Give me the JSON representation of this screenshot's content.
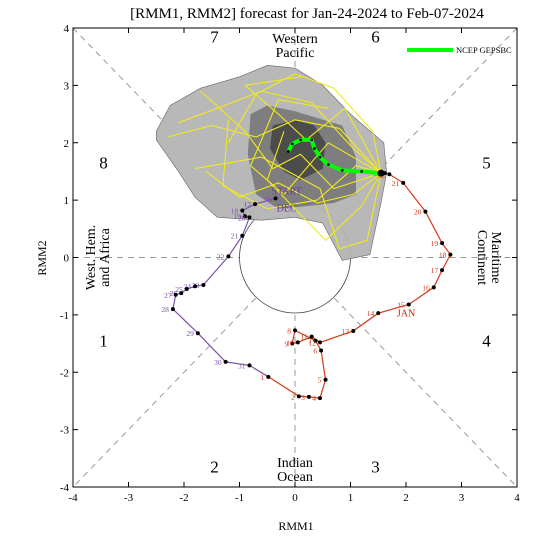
{
  "chart_data": {
    "type": "scatter",
    "title": "[RMM1, RMM2] forecast for Jan-24-2024 to Feb-07-2024",
    "xlabel": "RMM1",
    "ylabel": "RMM2",
    "xlim": [
      -4,
      4
    ],
    "ylim": [
      -4,
      4
    ],
    "xticks": [
      "-4",
      "-3",
      "-2",
      "-1",
      "0",
      "1",
      "2",
      "3",
      "4"
    ],
    "yticks": [
      "-4",
      "-3",
      "-2",
      "-1",
      "0",
      "1",
      "2",
      "3",
      "4"
    ],
    "phases": [
      {
        "label": "1",
        "x": -3.45,
        "y": -1.55
      },
      {
        "label": "2",
        "x": -1.45,
        "y": -3.75
      },
      {
        "label": "3",
        "x": 1.45,
        "y": -3.75
      },
      {
        "label": "4",
        "x": 3.45,
        "y": -1.55
      },
      {
        "label": "5",
        "x": 3.45,
        "y": 1.55
      },
      {
        "label": "6",
        "x": 1.45,
        "y": 3.75
      },
      {
        "label": "7",
        "x": -1.45,
        "y": 3.75
      },
      {
        "label": "8",
        "x": -3.45,
        "y": 1.55
      }
    ],
    "regions": {
      "top": [
        "Western",
        "Pacific"
      ],
      "bottom": [
        "Indian",
        "Ocean"
      ],
      "left": [
        "West. Hem.",
        "and Africa"
      ],
      "right": [
        "Maritime",
        "Continent"
      ]
    },
    "legend": {
      "label": "NCEP GEPSBC",
      "position": "top-right",
      "color": "#00ff00"
    },
    "month_labels": [
      {
        "text": "DEC",
        "x": -0.15,
        "y": 0.8,
        "color": "#6a3d9a"
      },
      {
        "text": "START",
        "x": -0.15,
        "y": 1.1,
        "color": "#6a3d9a"
      },
      {
        "text": "JAN",
        "x": 2.0,
        "y": -1.03,
        "color": "#cc2200"
      }
    ],
    "colors": {
      "dec": "#7b52a8",
      "jan": "#d43a1a",
      "ensemble": "#f0ea1e",
      "ensemble_mean": "#00ff00",
      "plume_outer": "#b4b4b4",
      "plume_inner": "#7a7a7a",
      "plume_core": "#4a4a4a"
    },
    "series": [
      {
        "name": "DEC",
        "points": [
          {
            "day": "22",
            "x": -1.2,
            "y": 0.02
          },
          {
            "day": "23",
            "x": -1.65,
            "y": -0.48
          },
          {
            "day": "24",
            "x": -1.8,
            "y": -0.5
          },
          {
            "day": "25",
            "x": -1.95,
            "y": -0.55
          },
          {
            "day": "26",
            "x": -2.05,
            "y": -0.62
          },
          {
            "day": "27",
            "x": -2.15,
            "y": -0.65
          },
          {
            "day": "28",
            "x": -2.2,
            "y": -0.9
          },
          {
            "day": "29",
            "x": -1.75,
            "y": -1.32
          },
          {
            "day": "30",
            "x": -1.25,
            "y": -1.82
          },
          {
            "day": "31",
            "x": -0.82,
            "y": -1.88
          }
        ]
      },
      {
        "name": "JAN",
        "points": [
          {
            "day": "1",
            "x": -0.48,
            "y": -2.08
          },
          {
            "day": "2",
            "x": 0.07,
            "y": -2.42
          },
          {
            "day": "3",
            "x": 0.25,
            "y": -2.43
          },
          {
            "day": "4",
            "x": 0.45,
            "y": -2.45
          },
          {
            "day": "5",
            "x": 0.55,
            "y": -2.13
          },
          {
            "day": "6",
            "x": 0.47,
            "y": -1.62
          },
          {
            "day": "7",
            "x": 0.37,
            "y": -1.45
          },
          {
            "day": "8",
            "x": 0.0,
            "y": -1.27
          },
          {
            "day": "9",
            "x": -0.05,
            "y": -1.5
          },
          {
            "day": "10",
            "x": 0.05,
            "y": -1.48
          },
          {
            "day": "11",
            "x": 0.3,
            "y": -1.38
          },
          {
            "day": "12",
            "x": 0.45,
            "y": -1.48
          },
          {
            "day": "13",
            "x": 1.05,
            "y": -1.28
          },
          {
            "day": "14",
            "x": 1.5,
            "y": -0.97
          },
          {
            "day": "15",
            "x": 2.05,
            "y": -0.82
          },
          {
            "day": "16",
            "x": 2.5,
            "y": -0.52
          },
          {
            "day": "17",
            "x": 2.65,
            "y": -0.22
          },
          {
            "day": "18",
            "x": 2.8,
            "y": 0.05
          },
          {
            "day": "19",
            "x": 2.65,
            "y": 0.25
          },
          {
            "day": "20",
            "x": 2.35,
            "y": 0.8
          },
          {
            "day": "21",
            "x": 1.95,
            "y": 1.3
          },
          {
            "day": "22",
            "x": 1.7,
            "y": 1.45
          },
          {
            "day": "23",
            "x": 1.62,
            "y": 1.47
          }
        ]
      },
      {
        "name": "DEC_START",
        "points": [
          {
            "day": "16",
            "x": -0.35,
            "y": 1.03
          },
          {
            "day": "17",
            "x": -0.72,
            "y": 0.93
          },
          {
            "day": "18",
            "x": -0.95,
            "y": 0.82
          },
          {
            "day": "19",
            "x": -0.9,
            "y": 0.72
          },
          {
            "day": "20",
            "x": -0.82,
            "y": 0.7
          },
          {
            "day": "21",
            "x": -0.95,
            "y": 0.38
          }
        ]
      },
      {
        "name": "NCEP GEPSBC",
        "points": [
          {
            "x": 1.55,
            "y": 1.47
          },
          {
            "x": 1.2,
            "y": 1.5
          },
          {
            "x": 0.85,
            "y": 1.52
          },
          {
            "x": 0.6,
            "y": 1.62
          },
          {
            "x": 0.45,
            "y": 1.75
          },
          {
            "x": 0.35,
            "y": 1.9
          },
          {
            "x": 0.3,
            "y": 2.05
          },
          {
            "x": 0.1,
            "y": 2.05
          },
          {
            "x": -0.05,
            "y": 1.98
          },
          {
            "x": -0.12,
            "y": 1.85
          }
        ]
      }
    ],
    "plume": {
      "outer": [
        [
          -2.5,
          2.2
        ],
        [
          -2.25,
          2.65
        ],
        [
          -1.7,
          2.95
        ],
        [
          -1.0,
          3.15
        ],
        [
          -0.5,
          3.35
        ],
        [
          0.0,
          3.3
        ],
        [
          0.5,
          3.0
        ],
        [
          1.0,
          2.5
        ],
        [
          1.6,
          2.0
        ],
        [
          1.65,
          1.47
        ],
        [
          1.55,
          0.95
        ],
        [
          1.35,
          0.05
        ],
        [
          0.85,
          -0.05
        ],
        [
          0.5,
          0.6
        ],
        [
          0.0,
          0.7
        ],
        [
          -0.6,
          0.65
        ],
        [
          -1.4,
          0.7
        ],
        [
          -1.8,
          1.05
        ],
        [
          -2.1,
          1.5
        ],
        [
          -2.5,
          2.05
        ]
      ],
      "inner": [
        [
          -0.8,
          2.5
        ],
        [
          -0.5,
          2.65
        ],
        [
          0.0,
          2.55
        ],
        [
          0.5,
          2.4
        ],
        [
          0.85,
          2.3
        ],
        [
          1.1,
          1.75
        ],
        [
          1.1,
          1.1
        ],
        [
          0.7,
          0.95
        ],
        [
          0.25,
          0.9
        ],
        [
          -0.3,
          0.85
        ],
        [
          -0.7,
          1.1
        ],
        [
          -0.85,
          1.8
        ]
      ],
      "core": [
        [
          -0.4,
          2.3
        ],
        [
          0.0,
          2.4
        ],
        [
          0.35,
          2.3
        ],
        [
          0.55,
          2.0
        ],
        [
          0.5,
          1.55
        ],
        [
          0.1,
          1.35
        ],
        [
          -0.2,
          1.5
        ],
        [
          -0.45,
          1.9
        ]
      ]
    },
    "ensemble": [
      [
        [
          1.55,
          1.47
        ],
        [
          1.0,
          1.95
        ],
        [
          0.3,
          2.7
        ],
        [
          -0.6,
          2.9
        ],
        [
          -1.4,
          2.6
        ],
        [
          -2.1,
          2.35
        ]
      ],
      [
        [
          1.55,
          1.47
        ],
        [
          1.05,
          1.1
        ],
        [
          0.4,
          0.95
        ],
        [
          -0.3,
          1.3
        ],
        [
          -1.0,
          1.05
        ],
        [
          -1.6,
          1.5
        ]
      ],
      [
        [
          1.55,
          1.47
        ],
        [
          0.8,
          2.25
        ],
        [
          0.0,
          2.4
        ],
        [
          -0.7,
          2.1
        ],
        [
          -1.5,
          2.3
        ],
        [
          -2.3,
          2.1
        ]
      ],
      [
        [
          1.55,
          1.47
        ],
        [
          1.2,
          0.9
        ],
        [
          0.55,
          0.3
        ],
        [
          0.0,
          0.85
        ],
        [
          -0.5,
          1.35
        ],
        [
          -0.2,
          2.2
        ]
      ],
      [
        [
          1.55,
          1.47
        ],
        [
          1.4,
          2.2
        ],
        [
          0.7,
          2.95
        ],
        [
          0.0,
          3.2
        ],
        [
          -0.7,
          2.85
        ],
        [
          -1.2,
          2.0
        ]
      ],
      [
        [
          1.55,
          1.47
        ],
        [
          0.7,
          1.2
        ],
        [
          0.1,
          1.8
        ],
        [
          -0.4,
          1.55
        ],
        [
          -0.9,
          2.2
        ],
        [
          -1.7,
          2.9
        ]
      ],
      [
        [
          1.55,
          1.47
        ],
        [
          1.1,
          1.6
        ],
        [
          0.4,
          1.0
        ],
        [
          -0.5,
          0.85
        ],
        [
          -1.3,
          1.25
        ],
        [
          -1.2,
          2.4
        ]
      ],
      [
        [
          1.55,
          1.47
        ],
        [
          0.9,
          2.6
        ],
        [
          0.2,
          2.05
        ],
        [
          -0.3,
          2.5
        ],
        [
          -0.9,
          3.0
        ],
        [
          0.1,
          3.15
        ]
      ],
      [
        [
          1.55,
          1.47
        ],
        [
          1.3,
          0.3
        ],
        [
          0.8,
          0.15
        ],
        [
          0.45,
          1.2
        ],
        [
          -0.6,
          1.75
        ],
        [
          -1.8,
          1.55
        ]
      ],
      [
        [
          1.55,
          1.47
        ],
        [
          0.6,
          2.0
        ],
        [
          -0.2,
          1.1
        ],
        [
          -0.8,
          1.6
        ],
        [
          -0.3,
          2.75
        ],
        [
          0.6,
          2.6
        ]
      ]
    ]
  }
}
